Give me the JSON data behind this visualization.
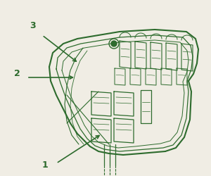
{
  "bg_color": "#f0ede4",
  "line_color": "#2d6b2d",
  "lw": 1.0,
  "fig_w": 3.0,
  "fig_h": 2.5
}
